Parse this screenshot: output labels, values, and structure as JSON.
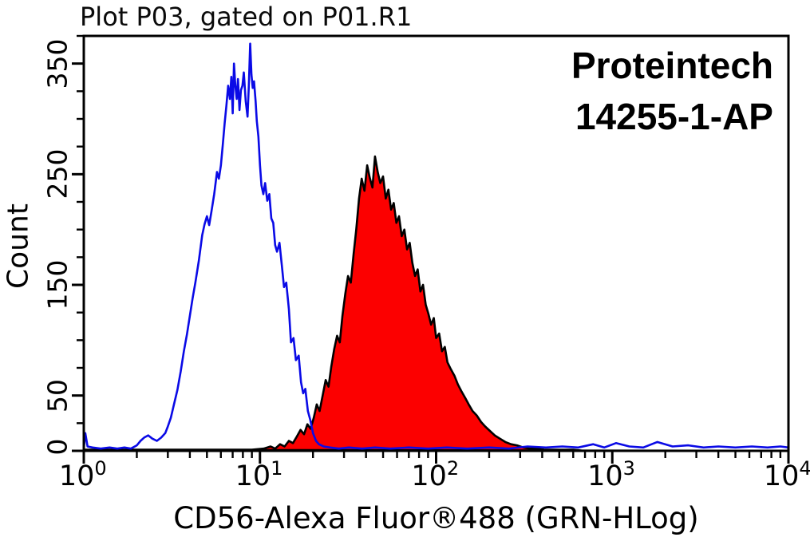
{
  "chart_data": {
    "type": "histogram",
    "title": "Plot P03, gated on P01.R1",
    "xlabel": "CD56-Alexa Fluor®488 (GRN-HLog)",
    "ylabel": "Count",
    "annotation": [
      "Proteintech",
      "14255-1-AP"
    ],
    "x_scale": "log10",
    "x_range": [
      1,
      10000
    ],
    "x_decades": [
      0,
      1,
      2,
      3,
      4
    ],
    "x_tick_label_base": "10",
    "y_range": [
      0,
      375
    ],
    "y_ticks_labeled": [
      0,
      50,
      150,
      250,
      350
    ],
    "y_tick_minor_step": 25,
    "grid": false,
    "legend": "none",
    "colors": {
      "control_line": "#0a0ae6",
      "sample_fill": "#fc0000",
      "sample_outline": "#000000",
      "frame": "#000000",
      "text": "#000000"
    },
    "series": [
      {
        "name": "control (open blue histogram)",
        "style": "open",
        "points": [
          [
            1,
            2
          ],
          [
            1.02,
            16
          ],
          [
            1.05,
            4
          ],
          [
            1.12,
            3
          ],
          [
            1.25,
            2
          ],
          [
            1.4,
            3
          ],
          [
            1.55,
            2
          ],
          [
            1.7,
            3
          ],
          [
            1.85,
            2
          ],
          [
            2.0,
            5
          ],
          [
            2.1,
            9
          ],
          [
            2.2,
            12
          ],
          [
            2.32,
            14
          ],
          [
            2.45,
            11
          ],
          [
            2.6,
            9
          ],
          [
            2.75,
            12
          ],
          [
            2.9,
            16
          ],
          [
            3.0,
            22
          ],
          [
            3.12,
            30
          ],
          [
            3.25,
            42
          ],
          [
            3.4,
            55
          ],
          [
            3.55,
            72
          ],
          [
            3.7,
            90
          ],
          [
            3.85,
            105
          ],
          [
            4.0,
            122
          ],
          [
            4.15,
            138
          ],
          [
            4.3,
            152
          ],
          [
            4.5,
            172
          ],
          [
            4.7,
            195
          ],
          [
            4.85,
            205
          ],
          [
            5.0,
            212
          ],
          [
            5.15,
            204
          ],
          [
            5.3,
            216
          ],
          [
            5.5,
            232
          ],
          [
            5.7,
            252
          ],
          [
            5.85,
            246
          ],
          [
            6.0,
            258
          ],
          [
            6.15,
            276
          ],
          [
            6.3,
            296
          ],
          [
            6.45,
            312
          ],
          [
            6.6,
            330
          ],
          [
            6.75,
            318
          ],
          [
            6.88,
            338
          ],
          [
            7.0,
            305
          ],
          [
            7.12,
            350
          ],
          [
            7.25,
            330
          ],
          [
            7.38,
            318
          ],
          [
            7.5,
            336
          ],
          [
            7.65,
            308
          ],
          [
            7.8,
            326
          ],
          [
            7.95,
            330
          ],
          [
            8.1,
            342
          ],
          [
            8.3,
            316
          ],
          [
            8.5,
            302
          ],
          [
            8.65,
            330
          ],
          [
            8.8,
            368
          ],
          [
            8.95,
            340
          ],
          [
            9.1,
            328
          ],
          [
            9.25,
            334
          ],
          [
            9.45,
            316
          ],
          [
            9.6,
            298
          ],
          [
            9.8,
            284
          ],
          [
            10.0,
            258
          ],
          [
            10.2,
            240
          ],
          [
            10.45,
            232
          ],
          [
            10.7,
            242
          ],
          [
            11.0,
            226
          ],
          [
            11.3,
            232
          ],
          [
            11.6,
            210
          ],
          [
            11.9,
            206
          ],
          [
            12.2,
            186
          ],
          [
            12.5,
            180
          ],
          [
            12.9,
            188
          ],
          [
            13.3,
            168
          ],
          [
            13.7,
            148
          ],
          [
            14.1,
            152
          ],
          [
            14.6,
            128
          ],
          [
            15.0,
            98
          ],
          [
            15.5,
            102
          ],
          [
            16.0,
            82
          ],
          [
            16.6,
            86
          ],
          [
            17.1,
            62
          ],
          [
            17.6,
            52
          ],
          [
            18.1,
            56
          ],
          [
            18.7,
            36
          ],
          [
            19.3,
            28
          ],
          [
            20.0,
            16
          ],
          [
            20.8,
            9
          ],
          [
            21.6,
            6
          ],
          [
            23,
            4
          ],
          [
            25,
            3
          ],
          [
            28,
            2
          ],
          [
            32,
            3
          ],
          [
            38,
            2
          ],
          [
            45,
            3
          ],
          [
            55,
            2
          ],
          [
            70,
            3
          ],
          [
            90,
            2
          ],
          [
            115,
            3
          ],
          [
            150,
            2
          ],
          [
            200,
            3
          ],
          [
            260,
            2
          ],
          [
            330,
            4
          ],
          [
            420,
            3
          ],
          [
            520,
            4
          ],
          [
            640,
            3
          ],
          [
            780,
            6
          ],
          [
            900,
            3
          ],
          [
            1050,
            7
          ],
          [
            1250,
            4
          ],
          [
            1500,
            3
          ],
          [
            1800,
            8
          ],
          [
            2200,
            4
          ],
          [
            2700,
            5
          ],
          [
            3300,
            3
          ],
          [
            4000,
            4
          ],
          [
            5000,
            3
          ],
          [
            6200,
            4
          ],
          [
            7600,
            3
          ],
          [
            9000,
            4
          ],
          [
            10000,
            3
          ]
        ]
      },
      {
        "name": "CD56-Alexa Fluor 488 stained (filled red histogram)",
        "style": "filled",
        "points": [
          [
            1,
            1
          ],
          [
            3,
            1
          ],
          [
            6,
            1
          ],
          [
            9,
            1
          ],
          [
            10.5,
            2
          ],
          [
            11.5,
            4
          ],
          [
            12.2,
            2
          ],
          [
            13,
            6
          ],
          [
            13.8,
            4
          ],
          [
            14.6,
            9
          ],
          [
            15.4,
            7
          ],
          [
            16.2,
            13
          ],
          [
            17,
            19
          ],
          [
            17.8,
            15
          ],
          [
            18.6,
            24
          ],
          [
            19.4,
            20
          ],
          [
            20.2,
            30
          ],
          [
            21,
            42
          ],
          [
            21.8,
            36
          ],
          [
            22.7,
            50
          ],
          [
            23.6,
            64
          ],
          [
            24.5,
            58
          ],
          [
            25.4,
            76
          ],
          [
            26.4,
            92
          ],
          [
            27.4,
            104
          ],
          [
            28.4,
            98
          ],
          [
            29.4,
            122
          ],
          [
            30.5,
            142
          ],
          [
            31.6,
            158
          ],
          [
            32.8,
            152
          ],
          [
            34,
            178
          ],
          [
            35.2,
            200
          ],
          [
            36.5,
            228
          ],
          [
            37.8,
            246
          ],
          [
            39.2,
            235
          ],
          [
            40.6,
            258
          ],
          [
            42,
            247
          ],
          [
            43.5,
            238
          ],
          [
            45,
            266
          ],
          [
            46.6,
            252
          ],
          [
            48.2,
            242
          ],
          [
            50,
            248
          ],
          [
            51.8,
            228
          ],
          [
            53.6,
            236
          ],
          [
            55.5,
            218
          ],
          [
            57.5,
            224
          ],
          [
            59.5,
            206
          ],
          [
            61.6,
            212
          ],
          [
            63.8,
            194
          ],
          [
            66,
            200
          ],
          [
            68.4,
            182
          ],
          [
            70.8,
            188
          ],
          [
            73.3,
            170
          ],
          [
            75.9,
            158
          ],
          [
            78.6,
            164
          ],
          [
            81.4,
            144
          ],
          [
            84.3,
            150
          ],
          [
            87.3,
            132
          ],
          [
            90.4,
            124
          ],
          [
            93.6,
            114
          ],
          [
            97,
            120
          ],
          [
            100,
            102
          ],
          [
            104,
            106
          ],
          [
            108,
            90
          ],
          [
            112,
            94
          ],
          [
            116,
            80
          ],
          [
            121,
            74
          ],
          [
            127,
            68
          ],
          [
            133,
            60
          ],
          [
            139,
            54
          ],
          [
            146,
            48
          ],
          [
            153,
            42
          ],
          [
            161,
            36
          ],
          [
            170,
            32
          ],
          [
            180,
            26
          ],
          [
            190,
            22
          ],
          [
            202,
            18
          ],
          [
            215,
            14
          ],
          [
            230,
            11
          ],
          [
            247,
            8
          ],
          [
            266,
            6
          ],
          [
            288,
            5
          ],
          [
            313,
            3
          ],
          [
            342,
            2
          ],
          [
            376,
            2
          ],
          [
            415,
            1
          ],
          [
            460,
            1
          ],
          [
            520,
            1
          ],
          [
            600,
            1
          ],
          [
            700,
            0
          ],
          [
            1000,
            0
          ],
          [
            5000,
            0
          ],
          [
            10000,
            0
          ]
        ]
      }
    ]
  }
}
